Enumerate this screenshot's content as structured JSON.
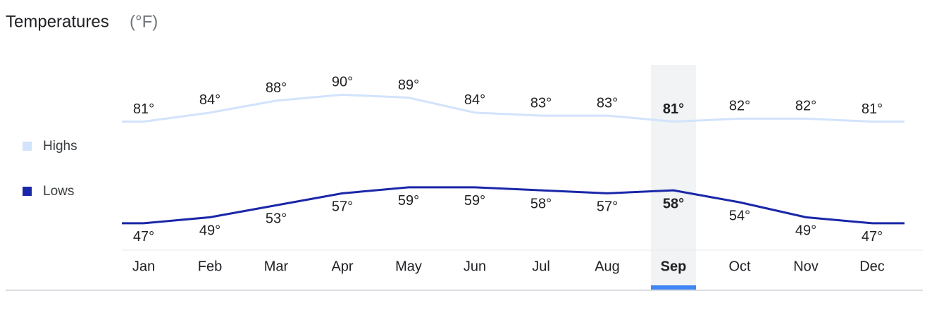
{
  "chart_data": {
    "type": "line",
    "title": "Temperatures",
    "subtitle": "(°F)",
    "categories": [
      "Jan",
      "Feb",
      "Mar",
      "Apr",
      "May",
      "Jun",
      "Jul",
      "Aug",
      "Sep",
      "Oct",
      "Nov",
      "Dec"
    ],
    "series": [
      {
        "name": "Highs",
        "color": "#d2e3fc",
        "values": [
          81,
          84,
          88,
          90,
          89,
          84,
          83,
          83,
          81,
          82,
          82,
          81
        ],
        "value_labels": [
          "81°",
          "84°",
          "88°",
          "90°",
          "89°",
          "84°",
          "83°",
          "83°",
          "81°",
          "82°",
          "82°",
          "81°"
        ]
      },
      {
        "name": "Lows",
        "color": "#1a27a8",
        "values": [
          47,
          49,
          53,
          57,
          59,
          59,
          58,
          57,
          58,
          54,
          49,
          47
        ],
        "value_labels": [
          "47°",
          "49°",
          "53°",
          "57°",
          "59°",
          "59°",
          "58°",
          "57°",
          "58°",
          "54°",
          "49°",
          "47°"
        ]
      }
    ],
    "ylim": [
      38,
      100
    ],
    "selected": 8
  }
}
